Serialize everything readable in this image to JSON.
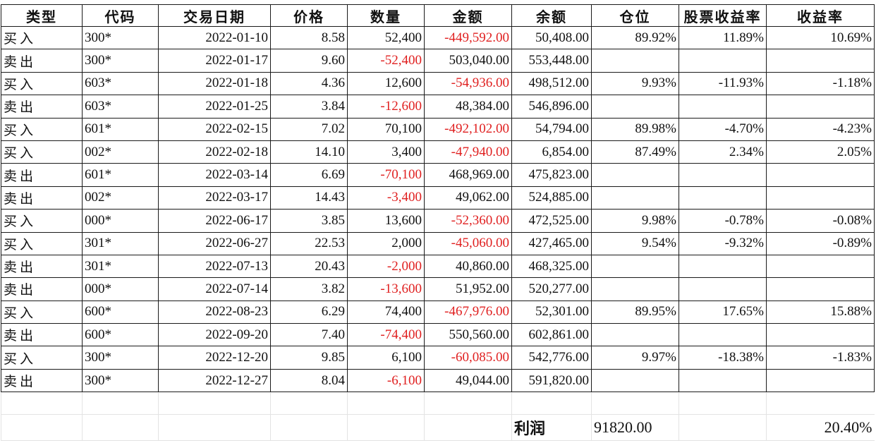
{
  "headers": [
    "类型",
    "代码",
    "交易日期",
    "价格",
    "数量",
    "金额",
    "余额",
    "仓位",
    "股票收益率",
    "收益率"
  ],
  "rows": [
    {
      "type": "买入",
      "code": "300*",
      "date": "2022-01-10",
      "price": "8.58",
      "qty": "52,400",
      "qty_neg": false,
      "amount": "-449,592.00",
      "amount_neg": true,
      "balance": "50,408.00",
      "position": "89.92%",
      "stock_return": "11.89%",
      "return": "10.69%"
    },
    {
      "type": "卖出",
      "code": "300*",
      "date": "2022-01-17",
      "price": "9.60",
      "qty": "-52,400",
      "qty_neg": true,
      "amount": "503,040.00",
      "amount_neg": false,
      "balance": "553,448.00",
      "position": "",
      "stock_return": "",
      "return": ""
    },
    {
      "type": "买入",
      "code": "603*",
      "date": "2022-01-18",
      "price": "4.36",
      "qty": "12,600",
      "qty_neg": false,
      "amount": "-54,936.00",
      "amount_neg": true,
      "balance": "498,512.00",
      "position": "9.93%",
      "stock_return": "-11.93%",
      "return": "-1.18%"
    },
    {
      "type": "卖出",
      "code": "603*",
      "date": "2022-01-25",
      "price": "3.84",
      "qty": "-12,600",
      "qty_neg": true,
      "amount": "48,384.00",
      "amount_neg": false,
      "balance": "546,896.00",
      "position": "",
      "stock_return": "",
      "return": ""
    },
    {
      "type": "买入",
      "code": "601*",
      "date": "2022-02-15",
      "price": "7.02",
      "qty": "70,100",
      "qty_neg": false,
      "amount": "-492,102.00",
      "amount_neg": true,
      "balance": "54,794.00",
      "position": "89.98%",
      "stock_return": "-4.70%",
      "return": "-4.23%"
    },
    {
      "type": "买入",
      "code": "002*",
      "date": "2022-02-18",
      "price": "14.10",
      "qty": "3,400",
      "qty_neg": false,
      "amount": "-47,940.00",
      "amount_neg": true,
      "balance": "6,854.00",
      "position": "87.49%",
      "stock_return": "2.34%",
      "return": "2.05%"
    },
    {
      "type": "卖出",
      "code": "601*",
      "date": "2022-03-14",
      "price": "6.69",
      "qty": "-70,100",
      "qty_neg": true,
      "amount": "468,969.00",
      "amount_neg": false,
      "balance": "475,823.00",
      "position": "",
      "stock_return": "",
      "return": ""
    },
    {
      "type": "卖出",
      "code": "002*",
      "date": "2022-03-17",
      "price": "14.43",
      "qty": "-3,400",
      "qty_neg": true,
      "amount": "49,062.00",
      "amount_neg": false,
      "balance": "524,885.00",
      "position": "",
      "stock_return": "",
      "return": ""
    },
    {
      "type": "买入",
      "code": "000*",
      "date": "2022-06-17",
      "price": "3.85",
      "qty": "13,600",
      "qty_neg": false,
      "amount": "-52,360.00",
      "amount_neg": true,
      "balance": "472,525.00",
      "position": "9.98%",
      "stock_return": "-0.78%",
      "return": "-0.08%"
    },
    {
      "type": "买入",
      "code": "301*",
      "date": "2022-06-27",
      "price": "22.53",
      "qty": "2,000",
      "qty_neg": false,
      "amount": "-45,060.00",
      "amount_neg": true,
      "balance": "427,465.00",
      "position": "9.54%",
      "stock_return": "-9.32%",
      "return": "-0.89%"
    },
    {
      "type": "卖出",
      "code": "301*",
      "date": "2022-07-13",
      "price": "20.43",
      "qty": "-2,000",
      "qty_neg": true,
      "amount": "40,860.00",
      "amount_neg": false,
      "balance": "468,325.00",
      "position": "",
      "stock_return": "",
      "return": ""
    },
    {
      "type": "卖出",
      "code": "000*",
      "date": "2022-07-14",
      "price": "3.82",
      "qty": "-13,600",
      "qty_neg": true,
      "amount": "51,952.00",
      "amount_neg": false,
      "balance": "520,277.00",
      "position": "",
      "stock_return": "",
      "return": ""
    },
    {
      "type": "买入",
      "code": "600*",
      "date": "2022-08-23",
      "price": "6.29",
      "qty": "74,400",
      "qty_neg": false,
      "amount": "-467,976.00",
      "amount_neg": true,
      "balance": "52,301.00",
      "position": "89.95%",
      "stock_return": "17.65%",
      "return": "15.88%"
    },
    {
      "type": "卖出",
      "code": "600*",
      "date": "2022-09-20",
      "price": "7.40",
      "qty": "-74,400",
      "qty_neg": true,
      "amount": "550,560.00",
      "amount_neg": false,
      "balance": "602,861.00",
      "position": "",
      "stock_return": "",
      "return": ""
    },
    {
      "type": "买入",
      "code": "300*",
      "date": "2022-12-20",
      "price": "9.85",
      "qty": "6,100",
      "qty_neg": false,
      "amount": "-60,085.00",
      "amount_neg": true,
      "balance": "542,776.00",
      "position": "9.97%",
      "stock_return": "-18.38%",
      "return": "-1.83%"
    },
    {
      "type": "卖出",
      "code": "300*",
      "date": "2022-12-27",
      "price": "8.04",
      "qty": "-6,100",
      "qty_neg": true,
      "amount": "49,044.00",
      "amount_neg": false,
      "balance": "591,820.00",
      "position": "",
      "stock_return": "",
      "return": ""
    }
  ],
  "summary": {
    "profit_label": "利润",
    "profit_value": "91820.00",
    "profit_rate": "20.40%"
  },
  "colors": {
    "negative": "#e02020",
    "text": "#111111",
    "grid": "#1a1a1a"
  }
}
